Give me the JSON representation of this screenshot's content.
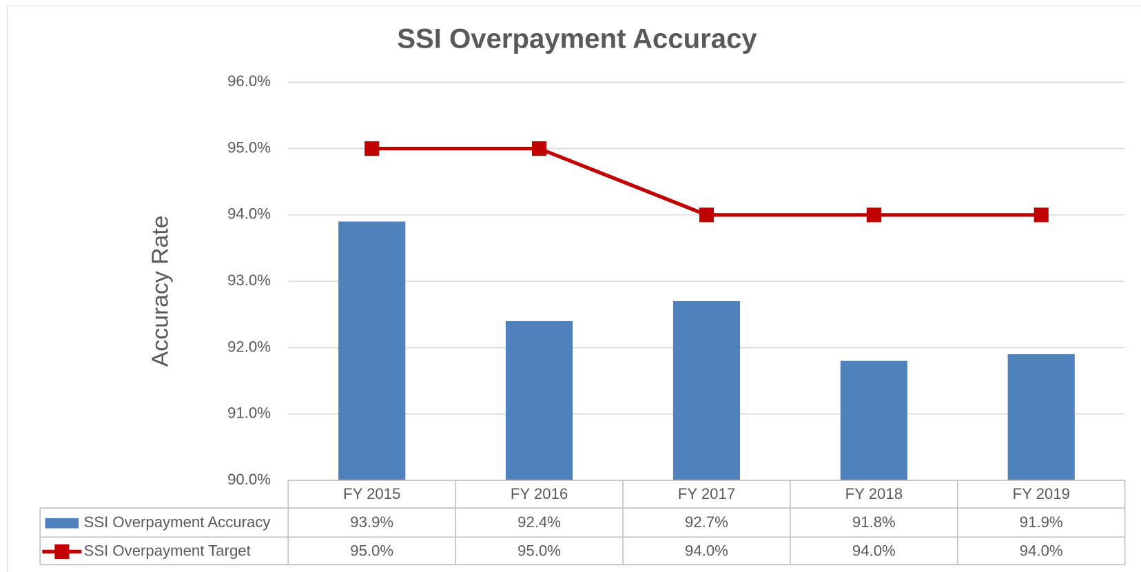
{
  "chart_data": {
    "type": "bar",
    "title": "SSI Overpayment Accuracy",
    "y_label": "Accuracy Rate",
    "categories": [
      "FY 2015",
      "FY 2016",
      "FY 2017",
      "FY 2018",
      "FY 2019"
    ],
    "series": [
      {
        "name": "SSI Overpayment Accuracy",
        "type": "bar",
        "color": "#4f81bd",
        "values": [
          93.9,
          92.4,
          92.7,
          91.8,
          91.9
        ],
        "value_labels": [
          "93.9%",
          "92.4%",
          "92.7%",
          "91.8%",
          "91.9%"
        ]
      },
      {
        "name": "SSI Overpayment Target",
        "type": "line",
        "color": "#c00000",
        "values": [
          95.0,
          95.0,
          94.0,
          94.0,
          94.0
        ],
        "value_labels": [
          "95.0%",
          "95.0%",
          "94.0%",
          "94.0%",
          "94.0%"
        ]
      }
    ],
    "ylim": [
      90,
      96
    ],
    "yticks": [
      {
        "value": 90,
        "label": "90.0%"
      },
      {
        "value": 91,
        "label": "91.0%"
      },
      {
        "value": 92,
        "label": "92.0%"
      },
      {
        "value": 93,
        "label": "93.0%"
      },
      {
        "value": 94,
        "label": "94.0%"
      },
      {
        "value": 95,
        "label": "95.0%"
      },
      {
        "value": 96,
        "label": "96.0%"
      }
    ],
    "grid": true,
    "data_table": true
  }
}
